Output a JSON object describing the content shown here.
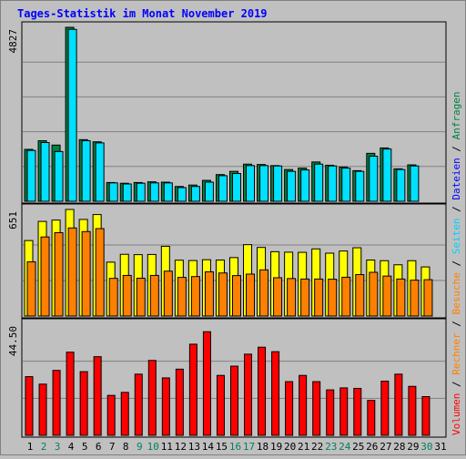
{
  "chart_data": {
    "type": "bar",
    "title": "Tages-Statistik im Monat November 2019",
    "categories": [
      "1",
      "2",
      "3",
      "4",
      "5",
      "6",
      "7",
      "8",
      "9",
      "10",
      "11",
      "12",
      "13",
      "14",
      "15",
      "16",
      "17",
      "18",
      "19",
      "20",
      "21",
      "22",
      "23",
      "24",
      "25",
      "26",
      "27",
      "28",
      "29",
      "30",
      "31"
    ],
    "weekend_days": [
      "2",
      "3",
      "9",
      "10",
      "16",
      "17",
      "23",
      "24",
      "30"
    ],
    "panels": [
      {
        "name": "top",
        "scale_label": "4827",
        "ymax": 4827,
        "series": [
          {
            "name": "Anfragen",
            "color": "#008040",
            "values": [
              1440,
              1680,
              1560,
              4827,
              1710,
              1650,
              520,
              500,
              520,
              540,
              530,
              410,
              450,
              580,
              740,
              830,
              1030,
              1020,
              990,
              880,
              920,
              1090,
              1000,
              950,
              850,
              1330,
              1480,
              900,
              1010,
              0,
              0
            ]
          },
          {
            "name": "Dateien",
            "color": "#00e0ff",
            "values": [
              1410,
              1630,
              1380,
              4770,
              1680,
              1620,
              510,
              480,
              500,
              510,
              510,
              380,
              410,
              530,
              710,
              770,
              990,
              990,
              980,
              830,
              870,
              1030,
              980,
              920,
              830,
              1250,
              1450,
              880,
              980,
              0,
              0
            ]
          }
        ]
      },
      {
        "name": "middle",
        "scale_label": "651",
        "ymax": 651,
        "series": [
          {
            "name": "Seiten",
            "color": "#ffff00",
            "values": [
              461,
              578,
              586,
              651,
              590,
              620,
              329,
              377,
              375,
              376,
              426,
              341,
              339,
              344,
              342,
              357,
              436,
              419,
              393,
              390,
              389,
              410,
              384,
              397,
              417,
              342,
              338,
              313,
              338,
              300,
              0
            ]
          },
          {
            "name": "Besuche",
            "color": "#ff8000",
            "values": [
              331,
              483,
              509,
              538,
              516,
              534,
              230,
              248,
              231,
              248,
              274,
              236,
              241,
              270,
              263,
              247,
              256,
              282,
              234,
              229,
              226,
              226,
              225,
              237,
              253,
              267,
              244,
              226,
              219,
              222,
              0
            ]
          }
        ]
      },
      {
        "name": "bottom",
        "scale_label": "44.50",
        "ymax": 44.5,
        "series": [
          {
            "name": "Volumen",
            "color": "#ff0000",
            "values": [
              23.5,
              20.5,
              26.0,
              33.3,
              25.5,
              31.5,
              16.0,
              17.2,
              24.5,
              30.0,
              23.0,
              26.5,
              36.5,
              41.5,
              24.0,
              27.7,
              32.5,
              35.3,
              33.5,
              21.5,
              24.0,
              21.5,
              18.2,
              19.0,
              18.8,
              14.0,
              21.7,
              24.5,
              19.6,
              15.5,
              0
            ]
          }
        ]
      }
    ],
    "legend": [
      {
        "text": "Anfragen",
        "color": "#008040"
      },
      {
        "text": "Dateien",
        "color": "#0000ff"
      },
      {
        "text": "Seiten",
        "color": "#00d0ff"
      },
      {
        "text": "Besuche",
        "color": "#ff8000"
      },
      {
        "text": "Rechner",
        "color": "#ff8000"
      },
      {
        "text": "Volumen",
        "color": "#ff0000"
      }
    ],
    "legend_separator": " / ",
    "colors": {
      "title": "#0000ff",
      "weekday_label": "#000000",
      "weekend_label": "#00805a",
      "background": "#c0c0c0",
      "grid": "#808080"
    },
    "grid": true,
    "legend_placement": "right-vertical"
  }
}
